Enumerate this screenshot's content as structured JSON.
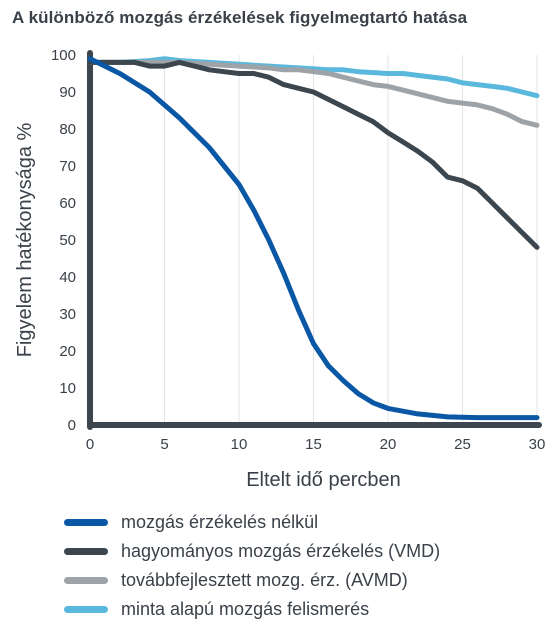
{
  "chart_data": {
    "type": "line",
    "title": "A különböző mozgás érzékelések figyelmegtartó hatása",
    "xlabel": "Eltelt idő percben",
    "ylabel": "Figyelem hatékonysága %",
    "xlim": [
      0,
      30
    ],
    "ylim": [
      0,
      100
    ],
    "xticks": [
      "0",
      "5",
      "10",
      "15",
      "20",
      "25",
      "30"
    ],
    "yticks": [
      "0",
      "10",
      "20",
      "30",
      "40",
      "50",
      "60",
      "70",
      "80",
      "90",
      "100"
    ],
    "grid": "vertical",
    "legend_position": "bottom",
    "series": [
      {
        "name": "mozgás érzékelés nélkül",
        "color": "#0a57a5",
        "x": [
          0,
          2,
          4,
          6,
          8,
          10,
          11,
          12,
          13,
          14,
          15,
          16,
          17,
          18,
          19,
          20,
          22,
          24,
          26,
          28,
          30
        ],
        "y": [
          99,
          95,
          90,
          83,
          75,
          65,
          58,
          50,
          41,
          31,
          22,
          16,
          12,
          8.5,
          6,
          4.5,
          3,
          2.2,
          2,
          2,
          2
        ]
      },
      {
        "name": "hagyományos mozgás érzékelés (VMD)",
        "color": "#3c464e",
        "x": [
          0,
          2,
          3,
          4,
          5,
          6,
          7,
          8,
          9,
          10,
          11,
          12,
          13,
          14,
          15,
          16,
          17,
          18,
          19,
          20,
          21,
          22,
          23,
          24,
          25,
          26,
          27,
          28,
          29,
          30
        ],
        "y": [
          98,
          98,
          98,
          97,
          97,
          98,
          97,
          96,
          95.5,
          95,
          95,
          94,
          92,
          91,
          90,
          88,
          86,
          84,
          82,
          79,
          76.5,
          74,
          71,
          67,
          66,
          64,
          60,
          56,
          52,
          48
        ]
      },
      {
        "name": "továbbfejlesztett mozg. érz. (AVMD)",
        "color": "#9ea3a8",
        "x": [
          0,
          2,
          4,
          5,
          6,
          8,
          10,
          12,
          13,
          14,
          15,
          16,
          17,
          18,
          19,
          20,
          21,
          22,
          23,
          24,
          25,
          26,
          27,
          28,
          29,
          30
        ],
        "y": [
          98,
          98,
          98,
          98,
          98,
          97.5,
          97,
          96.5,
          96,
          96,
          95.5,
          95,
          94,
          93,
          92,
          91.5,
          90.5,
          89.5,
          88.5,
          87.5,
          87,
          86.5,
          85.5,
          84,
          82,
          81
        ]
      },
      {
        "name": "minta alapú mozgás felismerés",
        "color": "#5bb8dd",
        "x": [
          0,
          2,
          4,
          5,
          6,
          8,
          10,
          12,
          14,
          16,
          17,
          18,
          20,
          21,
          22,
          24,
          25,
          26,
          27,
          28,
          29,
          30
        ],
        "y": [
          98,
          98,
          98.5,
          99,
          98.5,
          98,
          97.5,
          97,
          96.5,
          96,
          96,
          95.5,
          95,
          95,
          94.5,
          93.5,
          92.5,
          92,
          91.5,
          91,
          90,
          89
        ]
      }
    ]
  }
}
